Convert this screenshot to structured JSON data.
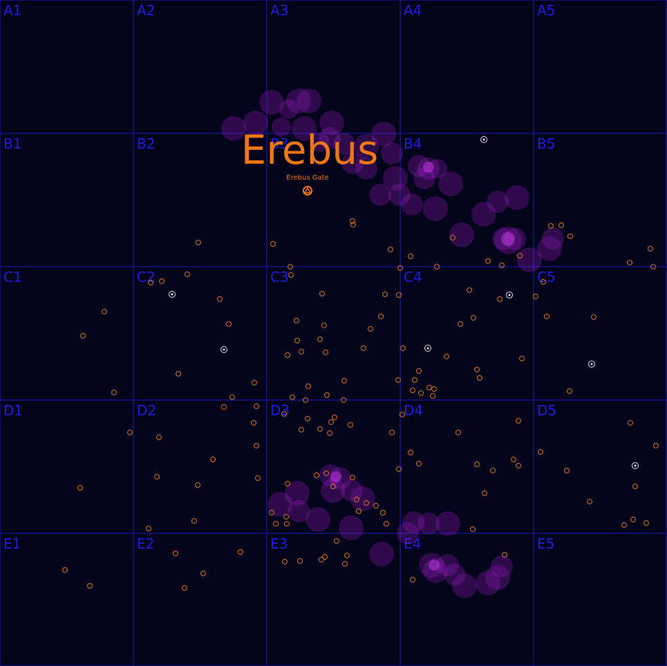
{
  "map": {
    "region_name": "Erebus",
    "landmark_label": "Erebus Gate",
    "colors": {
      "background": "#03031c",
      "grid": "#1c1cc8",
      "grid_label": "#1e1ee0",
      "system": "#d9731a",
      "station": "#e6e6e6",
      "nebula": "#a020c8",
      "region_label": "#f07814"
    },
    "grid": {
      "rows": [
        "A",
        "B",
        "C",
        "D",
        "E"
      ],
      "cols": [
        "1",
        "2",
        "3",
        "4",
        "5"
      ],
      "cell_labels": [
        "A1",
        "A2",
        "A3",
        "A4",
        "A5",
        "B1",
        "B2",
        "B3",
        "B4",
        "B5",
        "C1",
        "C2",
        "C3",
        "C4",
        "C5",
        "D1",
        "D2",
        "D3",
        "D4",
        "D5",
        "E1",
        "E2",
        "E3",
        "E4",
        "E5"
      ]
    },
    "landmark_icon": "gate-icon",
    "station_icon": "station-icon",
    "system_icon": "star-system-icon",
    "nebula_icon": "nebula-cloud"
  }
}
